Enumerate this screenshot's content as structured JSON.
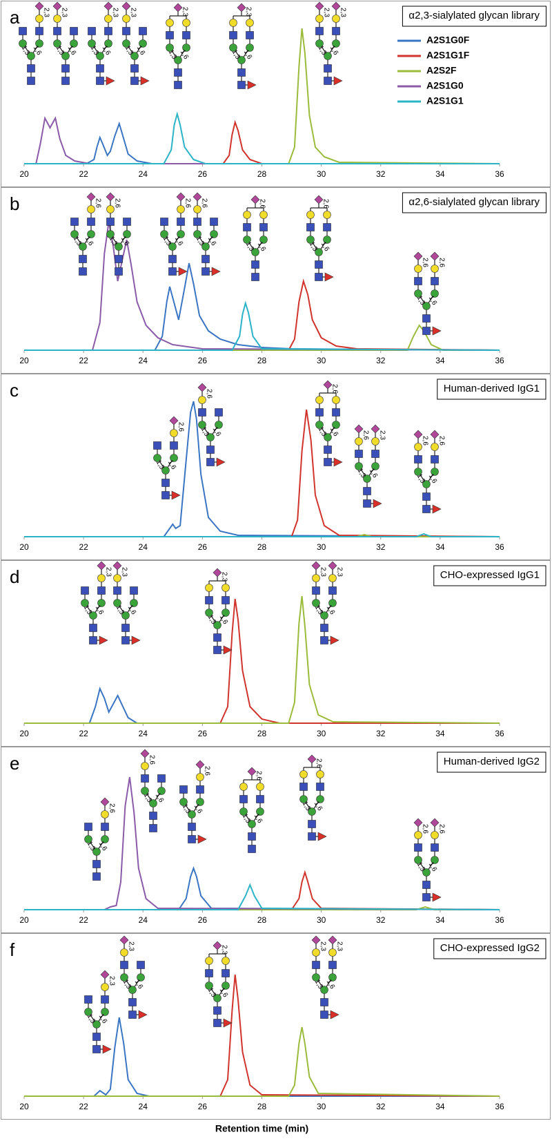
{
  "chart_data": [
    {
      "type": "line",
      "panel": "a",
      "title": "α2,3-sialylated glycan library",
      "xlim": [
        20,
        36
      ],
      "xticks": [
        20,
        22,
        24,
        26,
        28,
        30,
        32,
        34,
        36
      ],
      "ylim": [
        0,
        100
      ],
      "legend": "right",
      "series": [
        {
          "name": "A2S1G0F",
          "color": "#3a75c4",
          "x": [
            20,
            22.1,
            22.35,
            22.45,
            22.55,
            22.65,
            22.8,
            22.9,
            23.05,
            23.2,
            23.35,
            23.5,
            23.8,
            24.3,
            36
          ],
          "values": [
            0,
            0,
            3,
            12,
            19,
            14,
            6,
            9,
            20,
            29,
            18,
            7,
            2,
            0,
            0
          ]
        },
        {
          "name": "A2S1G1F",
          "color": "#d0342c",
          "x": [
            20,
            26.7,
            26.9,
            27.0,
            27.1,
            27.2,
            27.35,
            27.6,
            28.0,
            36
          ],
          "values": [
            0,
            0,
            6,
            21,
            30,
            24,
            10,
            3,
            0,
            0
          ]
        },
        {
          "name": "A2S2F",
          "color": "#9bbb3b",
          "x": [
            20,
            28.9,
            29.1,
            29.25,
            29.35,
            29.45,
            29.6,
            29.8,
            30.1,
            30.6,
            36
          ],
          "values": [
            0,
            0,
            12,
            70,
            98,
            80,
            35,
            12,
            5,
            1,
            0
          ]
        },
        {
          "name": "A2S1G0",
          "color": "#8b5aa8",
          "x": [
            20,
            20.4,
            20.55,
            20.7,
            20.87,
            21.05,
            21.2,
            21.4,
            21.7,
            22.2,
            36
          ],
          "values": [
            0,
            0,
            15,
            33,
            26,
            33,
            18,
            6,
            2,
            0,
            0
          ]
        },
        {
          "name": "A2S1G1",
          "color": "#2bb3c8",
          "x": [
            20,
            24.7,
            24.95,
            25.05,
            25.15,
            25.25,
            25.4,
            25.7,
            26.1,
            36
          ],
          "values": [
            0,
            0,
            10,
            28,
            36,
            28,
            12,
            3,
            0,
            0
          ]
        }
      ],
      "glycan_linkages": [
        [
          "2,3",
          "1,3",
          "1,6"
        ],
        [
          "2,3",
          "1,3",
          "1,6"
        ],
        [
          "2,3",
          "1,3",
          "1,6"
        ],
        [
          "2,3",
          "1,3",
          "1,6"
        ],
        [
          "2,3",
          "1,3",
          "1,6"
        ],
        [
          "2,3",
          "1,3",
          "1,6"
        ],
        [
          "2,3",
          "2,3",
          "1,3",
          "1,6"
        ]
      ]
    },
    {
      "type": "line",
      "panel": "b",
      "title": "α2,6-sialylated glycan library",
      "xlim": [
        20,
        36
      ],
      "xticks": [
        20,
        22,
        24,
        26,
        28,
        30,
        32,
        34,
        36
      ],
      "ylim": [
        0,
        100
      ],
      "series": [
        {
          "color": "#3a75c4",
          "x": [
            20,
            24.4,
            24.65,
            24.8,
            24.9,
            25.0,
            25.2,
            25.4,
            25.55,
            25.7,
            25.9,
            26.2,
            26.6,
            27.2,
            28,
            29,
            36
          ],
          "values": [
            0,
            0,
            10,
            35,
            46,
            38,
            22,
            45,
            63,
            48,
            25,
            14,
            8,
            4,
            2,
            1,
            0
          ]
        },
        {
          "color": "#d0342c",
          "x": [
            20,
            28.9,
            29.1,
            29.25,
            29.4,
            29.55,
            29.7,
            30,
            30.5,
            31.2,
            36
          ],
          "values": [
            0,
            0,
            8,
            35,
            50,
            40,
            22,
            9,
            3,
            1,
            0
          ]
        },
        {
          "color": "#9bbb3b",
          "x": [
            20,
            32.9,
            33.1,
            33.3,
            33.45,
            33.7,
            34.1,
            36
          ],
          "values": [
            0,
            0,
            10,
            18,
            14,
            4,
            0,
            0
          ]
        },
        {
          "color": "#8b5aa8",
          "x": [
            20,
            22.3,
            22.55,
            22.7,
            22.85,
            23.0,
            23.15,
            23.3,
            23.45,
            23.6,
            23.8,
            24.1,
            24.5,
            25,
            26,
            36
          ],
          "values": [
            0,
            0,
            20,
            70,
            93,
            75,
            50,
            65,
            80,
            62,
            35,
            18,
            9,
            4,
            1,
            0
          ]
        },
        {
          "color": "#2bb3c8",
          "x": [
            20,
            27.0,
            27.25,
            27.35,
            27.45,
            27.55,
            27.7,
            28,
            36
          ],
          "values": [
            0,
            0,
            10,
            26,
            34,
            27,
            10,
            1,
            0
          ]
        }
      ],
      "glycan_linkages": [
        [
          "2,6",
          "1,3",
          "1,6"
        ],
        [
          "2,6",
          "1,3",
          "1,6"
        ],
        [
          "2,6",
          "1,3",
          "1,6"
        ],
        [
          "2,6",
          "1,3",
          "1,6"
        ],
        [
          "2,6",
          "1,3",
          "1,6"
        ],
        [
          "2,6",
          "1,3",
          "1,6"
        ],
        [
          "2,6",
          "2,6",
          "1,3",
          "1,6"
        ]
      ]
    },
    {
      "type": "line",
      "panel": "c",
      "title": "Human-derived IgG1",
      "xlim": [
        20,
        36
      ],
      "xticks": [
        20,
        22,
        24,
        26,
        28,
        30,
        32,
        34,
        36
      ],
      "ylim": [
        0,
        100
      ],
      "series": [
        {
          "color": "#3a75c4",
          "x": [
            20,
            24.7,
            24.9,
            25.0,
            25.1,
            25.25,
            25.45,
            25.6,
            25.7,
            25.8,
            25.95,
            26.2,
            26.6,
            27.2,
            36
          ],
          "values": [
            0,
            0,
            6,
            9,
            6,
            8,
            55,
            90,
            98,
            85,
            45,
            14,
            4,
            1,
            0
          ]
        },
        {
          "color": "#d0342c",
          "x": [
            20,
            29.0,
            29.2,
            29.35,
            29.5,
            29.65,
            29.8,
            30.1,
            30.6,
            36
          ],
          "values": [
            0,
            0,
            12,
            62,
            92,
            70,
            30,
            8,
            1,
            0
          ]
        },
        {
          "color": "#9bbb3b",
          "x": [
            20,
            31.2,
            31.45,
            31.7,
            36
          ],
          "values": [
            0,
            0,
            1.5,
            0,
            0
          ]
        },
        {
          "color": "#2bb3c8",
          "x": [
            20,
            33.2,
            33.45,
            33.7,
            36
          ],
          "values": [
            0,
            0,
            2,
            0,
            0
          ]
        }
      ],
      "glycan_linkages": [
        [
          "2,6",
          "1,3",
          "1,6"
        ],
        [
          "2,6",
          "1,3",
          "1,6"
        ],
        [
          "2,6",
          "1,3",
          "1,6"
        ],
        [
          "2,6",
          "2,3",
          "1,3",
          "1,6"
        ],
        [
          "2,6",
          "2,6",
          "1,3",
          "1,6"
        ]
      ]
    },
    {
      "type": "line",
      "panel": "d",
      "title": "CHO-expressed IgG1",
      "xlim": [
        20,
        36
      ],
      "xticks": [
        20,
        22,
        24,
        26,
        28,
        30,
        32,
        34,
        36
      ],
      "ylim": [
        0,
        100
      ],
      "series": [
        {
          "color": "#3a75c4",
          "x": [
            20,
            22.2,
            22.4,
            22.55,
            22.7,
            22.85,
            23.0,
            23.15,
            23.3,
            23.5,
            23.8,
            36
          ],
          "values": [
            0,
            0,
            12,
            25,
            18,
            8,
            14,
            20,
            13,
            4,
            0,
            0
          ]
        },
        {
          "color": "#d0342c",
          "x": [
            20,
            26.6,
            26.85,
            27.0,
            27.1,
            27.2,
            27.35,
            27.6,
            28,
            28.6,
            36
          ],
          "values": [
            0,
            0,
            12,
            65,
            90,
            75,
            38,
            12,
            3,
            0,
            0
          ]
        },
        {
          "color": "#9bbb3b",
          "x": [
            20,
            28.9,
            29.1,
            29.25,
            29.35,
            29.45,
            29.6,
            29.9,
            30.4,
            36
          ],
          "values": [
            0,
            0,
            15,
            72,
            92,
            70,
            28,
            6,
            1,
            0
          ]
        }
      ],
      "glycan_linkages": [
        [
          "2,3",
          "1,3",
          "1,6"
        ],
        [
          "2,3",
          "1,3",
          "1,6"
        ],
        [
          "2,3",
          "1,3",
          "1,6"
        ],
        [
          "2,3",
          "2,3",
          "1,3",
          "1,6"
        ]
      ]
    },
    {
      "type": "line",
      "panel": "e",
      "title": "Human-derived IgG2",
      "xlim": [
        20,
        36
      ],
      "xticks": [
        20,
        22,
        24,
        26,
        28,
        30,
        32,
        34,
        36
      ],
      "ylim": [
        0,
        100
      ],
      "series": [
        {
          "color": "#3a75c4",
          "x": [
            20,
            25.2,
            25.45,
            25.6,
            25.7,
            25.8,
            25.95,
            26.3,
            36
          ],
          "values": [
            0,
            0,
            8,
            24,
            30,
            24,
            10,
            1,
            0
          ]
        },
        {
          "color": "#d0342c",
          "x": [
            20,
            29.0,
            29.25,
            29.35,
            29.45,
            29.55,
            29.7,
            30,
            36
          ],
          "values": [
            0,
            0,
            8,
            20,
            27,
            20,
            8,
            1,
            0
          ]
        },
        {
          "color": "#9bbb3b",
          "x": [
            20,
            33.2,
            33.5,
            33.8,
            36
          ],
          "values": [
            0,
            0,
            2,
            0,
            0
          ]
        },
        {
          "color": "#8b5aa8",
          "x": [
            20,
            22.7,
            22.9,
            23.1,
            23.25,
            23.4,
            23.55,
            23.7,
            23.85,
            24.1,
            24.5,
            36
          ],
          "values": [
            0,
            0,
            2,
            3,
            20,
            75,
            96,
            70,
            30,
            8,
            1,
            0
          ]
        },
        {
          "color": "#2bb3c8",
          "x": [
            20,
            27.2,
            27.45,
            27.6,
            27.75,
            28.0,
            36
          ],
          "values": [
            0,
            0,
            10,
            18,
            10,
            1,
            0
          ]
        }
      ],
      "glycan_linkages": [
        [
          "2,6",
          "1,3",
          "1,6"
        ],
        [
          "2,6",
          "1,3",
          "1,6"
        ],
        [
          "2,6",
          "1,3",
          "1,6"
        ],
        [
          "2,6",
          "1,3",
          "1,6"
        ],
        [
          "2,6",
          "1,3",
          "1,6"
        ],
        [
          "2,6",
          "2,6",
          "1,3",
          "1,6"
        ]
      ]
    },
    {
      "type": "line",
      "panel": "f",
      "title": "CHO-expressed IgG2",
      "xlim": [
        20,
        36
      ],
      "xticks": [
        20,
        22,
        24,
        26,
        28,
        30,
        32,
        34,
        36
      ],
      "ylim": [
        0,
        100
      ],
      "xlabel": "Retention time (min)",
      "series": [
        {
          "color": "#3a75c4",
          "x": [
            20,
            22.35,
            22.55,
            22.75,
            22.9,
            23.05,
            23.2,
            23.35,
            23.5,
            23.8,
            24.2,
            36
          ],
          "values": [
            0,
            0,
            4,
            1,
            5,
            35,
            57,
            38,
            12,
            2,
            0,
            0
          ]
        },
        {
          "color": "#d0342c",
          "x": [
            20,
            26.6,
            26.85,
            27.0,
            27.1,
            27.2,
            27.35,
            27.6,
            28,
            36
          ],
          "values": [
            0,
            0,
            12,
            62,
            88,
            70,
            32,
            8,
            1,
            0
          ]
        },
        {
          "color": "#9bbb3b",
          "x": [
            20,
            28.9,
            29.1,
            29.25,
            29.35,
            29.45,
            29.6,
            29.9,
            36
          ],
          "values": [
            0,
            0,
            8,
            38,
            50,
            38,
            14,
            2,
            0
          ]
        }
      ],
      "glycan_linkages": [
        [
          "2,3",
          "1,3",
          "1,6"
        ],
        [
          "2,3",
          "1,3",
          "1,6"
        ],
        [
          "2,3",
          "1,3",
          "1,6"
        ],
        [
          "2,3",
          "2,3",
          "1,3",
          "1,6"
        ]
      ]
    }
  ]
}
